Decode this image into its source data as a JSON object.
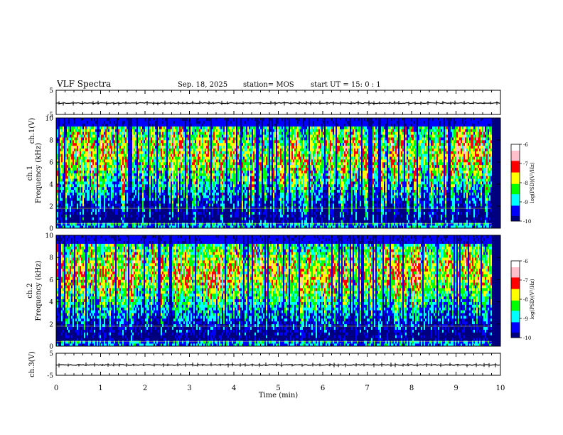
{
  "header": {
    "title": "VLF Spectra",
    "date": "Sep. 18, 2025",
    "station": "station= MOS",
    "start_ut": "start UT =  15: 0  : 1"
  },
  "chart_data": [
    {
      "type": "line",
      "name": "ch1-waveform",
      "ylabel": "ch.1(V)",
      "ylim": [
        -5,
        5
      ],
      "yticks": [
        "5",
        "-5"
      ],
      "xlim": [
        0,
        10
      ],
      "trace_level_V": -0.3
    },
    {
      "type": "heatmap",
      "name": "ch1-spectrogram",
      "ylabel": "ch.1\nFrequency (kHz)",
      "ylabel_lines": [
        "ch.1",
        "Frequency (kHz)"
      ],
      "ylim": [
        0,
        10
      ],
      "yticks": [
        "0",
        "2",
        "4",
        "6",
        "8",
        "10"
      ],
      "xlim": [
        0,
        10
      ],
      "data_end_min": 9.8,
      "colorbar": {
        "label": "log(PSD)(V²/Hz)",
        "range": [
          -10,
          -6
        ],
        "ticks": [
          "-6",
          "-7",
          "-8",
          "-9",
          "-10"
        ]
      }
    },
    {
      "type": "heatmap",
      "name": "ch2-spectrogram",
      "ylabel": "ch.2\nFrequency (kHz)",
      "ylabel_lines": [
        "ch.2",
        "Frequency (kHz)"
      ],
      "ylim": [
        0,
        10
      ],
      "yticks": [
        "0",
        "2",
        "4",
        "6",
        "8",
        "10"
      ],
      "xlim": [
        0,
        10
      ],
      "data_end_min": 9.8,
      "colorbar": {
        "label": "log(PSD)(V²/Hz)",
        "range": [
          -10,
          -6
        ],
        "ticks": [
          "-6",
          "-7",
          "-8",
          "-9",
          "-10"
        ]
      }
    },
    {
      "type": "line",
      "name": "ch3-waveform",
      "ylabel": "ch.3(V)",
      "ylim": [
        -5,
        5
      ],
      "yticks": [
        "5",
        "-5"
      ],
      "xlim": [
        0,
        10
      ],
      "trace_level_V": -0.3
    }
  ],
  "xaxis": {
    "label": "Time (min)",
    "ticks": [
      "0",
      "1",
      "2",
      "3",
      "4",
      "5",
      "6",
      "7",
      "8",
      "9",
      "10"
    ]
  },
  "colors": {
    "deep_blue": "#00007f",
    "blue": "#0000ff",
    "cyan": "#00ffff",
    "green": "#00ff00",
    "yellow": "#ffff00",
    "red": "#ff0000",
    "pink": "#ffc0cb",
    "white": "#ffffff"
  }
}
